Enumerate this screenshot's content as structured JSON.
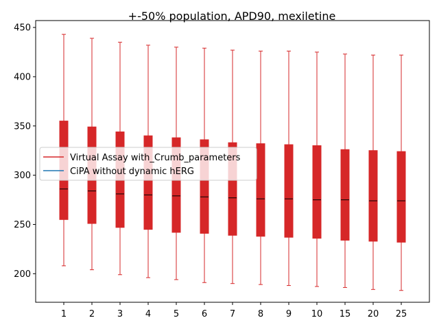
{
  "chart_data": {
    "type": "boxplot",
    "title": "+-50% population, APD90, mexiletine",
    "xlabel": "",
    "ylabel": "",
    "categories": [
      "1",
      "2",
      "3",
      "4",
      "5",
      "6",
      "7",
      "8",
      "9",
      "10",
      "15",
      "20",
      "25"
    ],
    "ylim": [
      171,
      457
    ],
    "yticks": [
      200,
      250,
      300,
      350,
      400,
      450
    ],
    "grid": false,
    "legend_placement": "center-left",
    "series": [
      {
        "name": "Virtual Assay with_Crumb_parameters",
        "color": "#d62728",
        "boxes": [
          {
            "min": 208,
            "q1": 255,
            "median": 286,
            "q3": 355,
            "max": 443
          },
          {
            "min": 204,
            "q1": 251,
            "median": 284,
            "q3": 349,
            "max": 439
          },
          {
            "min": 199,
            "q1": 247,
            "median": 281,
            "q3": 344,
            "max": 435
          },
          {
            "min": 196,
            "q1": 245,
            "median": 280,
            "q3": 340,
            "max": 432
          },
          {
            "min": 194,
            "q1": 242,
            "median": 279,
            "q3": 338,
            "max": 430
          },
          {
            "min": 191,
            "q1": 241,
            "median": 278,
            "q3": 336,
            "max": 429
          },
          {
            "min": 190,
            "q1": 239,
            "median": 277,
            "q3": 333,
            "max": 427
          },
          {
            "min": 189,
            "q1": 238,
            "median": 276,
            "q3": 332,
            "max": 426
          },
          {
            "min": 188,
            "q1": 237,
            "median": 276,
            "q3": 331,
            "max": 426
          },
          {
            "min": 187,
            "q1": 236,
            "median": 275,
            "q3": 330,
            "max": 425
          },
          {
            "min": 186,
            "q1": 234,
            "median": 275,
            "q3": 326,
            "max": 423
          },
          {
            "min": 184,
            "q1": 233,
            "median": 274,
            "q3": 325,
            "max": 422
          },
          {
            "min": 183,
            "q1": 232,
            "median": 274,
            "q3": 324,
            "max": 422
          }
        ]
      },
      {
        "name": "CiPA without dynamic hERG",
        "color": "#1f77b4",
        "boxes": []
      }
    ]
  }
}
